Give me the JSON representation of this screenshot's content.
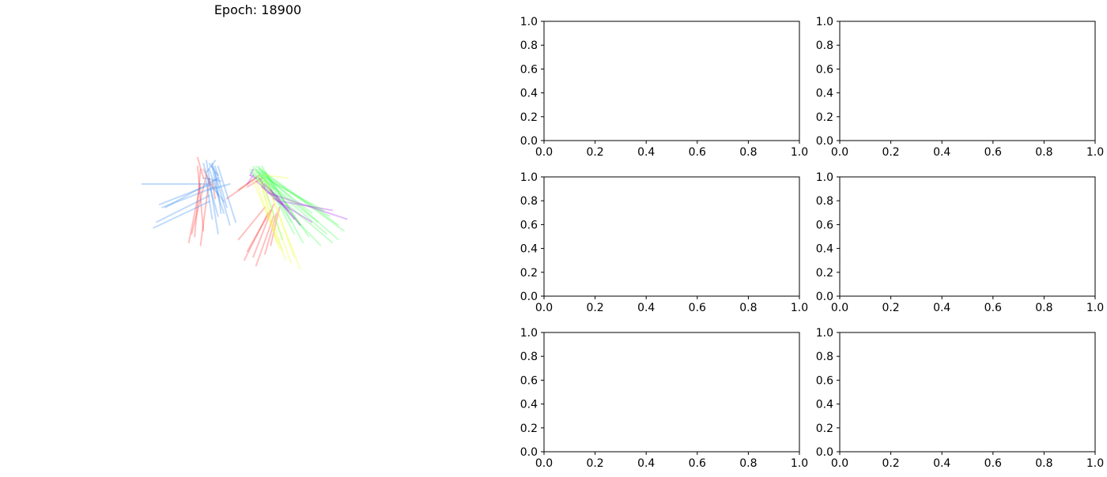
{
  "chart_data": [
    {
      "type": "line",
      "title": "Epoch: 18900",
      "axis_visible": false,
      "grid": false,
      "series": [
        {
          "color": "#ff3333",
          "lines": [
            [
              [
                -2.3,
                1.6
              ],
              [
                -2.1,
                -0.6
              ]
            ],
            [
              [
                -2.2,
                1.5
              ],
              [
                -2.4,
                -0.8
              ]
            ],
            [
              [
                -2.0,
                1.3
              ],
              [
                -2.5,
                -0.7
              ]
            ],
            [
              [
                -1.9,
                1.2
              ],
              [
                -2.2,
                -1.1
              ]
            ],
            [
              [
                -2.3,
                1.9
              ],
              [
                -2.1,
                1.2
              ]
            ],
            [
              [
                -2.1,
                1.5
              ],
              [
                -1.8,
                0.9
              ]
            ],
            [
              [
                -2.2,
                1.0
              ],
              [
                -2.6,
                -1.0
              ]
            ],
            [
              [
                -1.8,
                1.1
              ],
              [
                -1.7,
                0.5
              ]
            ],
            [
              [
                -1.3,
                0.5
              ],
              [
                -0.3,
                1.2
              ]
            ],
            [
              [
                -0.9,
                0.8
              ],
              [
                -0.2,
                1.3
              ]
            ],
            [
              [
                -0.6,
                0.9
              ],
              [
                -0.1,
                1.2
              ]
            ],
            [
              [
                0.0,
                0.2
              ],
              [
                -0.9,
                -0.9
              ]
            ],
            [
              [
                0.1,
                0.0
              ],
              [
                -0.7,
                -1.6
              ]
            ],
            [
              [
                0.3,
                -0.1
              ],
              [
                -0.3,
                -1.8
              ]
            ],
            [
              [
                0.2,
                0.1
              ],
              [
                -0.6,
                -1.3
              ]
            ],
            [
              [
                0.4,
                0.0
              ],
              [
                0.0,
                -1.4
              ]
            ],
            [
              [
                0.3,
                0.3
              ],
              [
                -0.4,
                -1.5
              ]
            ],
            [
              [
                0.5,
                0.2
              ],
              [
                0.2,
                -1.1
              ]
            ]
          ]
        },
        {
          "color": "#3388ee",
          "lines": [
            [
              [
                -4.2,
                1.0
              ],
              [
                -2.0,
                1.0
              ]
            ],
            [
              [
                -3.6,
                0.3
              ],
              [
                -1.8,
                1.0
              ]
            ],
            [
              [
                -3.5,
                0.2
              ],
              [
                -1.7,
                0.9
              ]
            ],
            [
              [
                -3.7,
                -0.3
              ],
              [
                -1.9,
                0.6
              ]
            ],
            [
              [
                -3.8,
                -0.5
              ],
              [
                -1.9,
                0.4
              ]
            ],
            [
              [
                -3.4,
                0.2
              ],
              [
                -1.6,
                1.2
              ]
            ],
            [
              [
                -2.0,
                1.8
              ],
              [
                -1.6,
                -0.7
              ]
            ],
            [
              [
                -1.8,
                1.7
              ],
              [
                -1.2,
                -0.4
              ]
            ],
            [
              [
                -1.7,
                1.6
              ],
              [
                -1.3,
                0.2
              ]
            ],
            [
              [
                -1.9,
                1.5
              ],
              [
                -1.4,
                0.0
              ]
            ],
            [
              [
                -1.6,
                1.6
              ],
              [
                -1.0,
                -0.3
              ]
            ],
            [
              [
                -2.1,
                1.7
              ],
              [
                -1.6,
                -0.1
              ]
            ],
            [
              [
                -1.7,
                1.4
              ],
              [
                -1.5,
                0.0
              ]
            ],
            [
              [
                -2.0,
                1.1
              ],
              [
                -1.8,
                -0.2
              ]
            ],
            [
              [
                -1.8,
                1.6
              ],
              [
                -1.6,
                0.6
              ]
            ],
            [
              [
                -1.9,
                0.8
              ],
              [
                -1.2,
                1.0
              ]
            ],
            [
              [
                -2.1,
                1.2
              ],
              [
                -1.5,
                1.1
              ]
            ],
            [
              [
                -1.6,
                1.3
              ],
              [
                -1.9,
                1.7
              ]
            ],
            [
              [
                -2.0,
                1.4
              ],
              [
                -1.7,
                1.8
              ]
            ],
            [
              [
                -1.8,
                0.9
              ],
              [
                -1.4,
                0.4
              ]
            ]
          ]
        },
        {
          "color": "#44ff55",
          "lines": [
            [
              [
                -0.4,
                1.5
              ],
              [
                2.2,
                -0.1
              ]
            ],
            [
              [
                -0.3,
                1.6
              ],
              [
                2.5,
                -0.4
              ]
            ],
            [
              [
                -0.2,
                1.5
              ],
              [
                2.7,
                -0.6
              ]
            ],
            [
              [
                -0.1,
                1.4
              ],
              [
                2.5,
                -0.9
              ]
            ],
            [
              [
                -0.2,
                1.3
              ],
              [
                2.1,
                -0.7
              ]
            ],
            [
              [
                -0.3,
                1.4
              ],
              [
                1.8,
                -0.3
              ]
            ],
            [
              [
                -0.1,
                1.5
              ],
              [
                1.5,
                -0.8
              ]
            ],
            [
              [
                0.0,
                1.4
              ],
              [
                1.3,
                -1.0
              ]
            ],
            [
              [
                -0.2,
                1.6
              ],
              [
                1.0,
                -0.7
              ]
            ],
            [
              [
                -0.4,
                1.3
              ],
              [
                1.9,
                -1.1
              ]
            ],
            [
              [
                -0.3,
                1.2
              ],
              [
                2.3,
                -1.0
              ]
            ],
            [
              [
                -0.1,
                1.3
              ],
              [
                0.9,
                -0.3
              ]
            ],
            [
              [
                0.0,
                1.2
              ],
              [
                2.0,
                0.1
              ]
            ],
            [
              [
                -0.3,
                1.5
              ],
              [
                1.6,
                0.0
              ]
            ],
            [
              [
                -0.2,
                1.4
              ],
              [
                0.6,
                -0.9
              ]
            ],
            [
              [
                -0.5,
                1.5
              ],
              [
                0.4,
                0.6
              ]
            ],
            [
              [
                -0.4,
                1.6
              ],
              [
                0.3,
                0.8
              ]
            ],
            [
              [
                -0.5,
                1.4
              ],
              [
                0.1,
                1.0
              ]
            ],
            [
              [
                0.1,
                1.3
              ],
              [
                1.2,
                -0.4
              ]
            ],
            [
              [
                -0.1,
                1.6
              ],
              [
                0.8,
                0.2
              ]
            ]
          ]
        },
        {
          "color": "#eeff33",
          "lines": [
            [
              [
                -0.2,
                1.2
              ],
              [
                0.7,
                -1.6
              ]
            ],
            [
              [
                -0.1,
                1.1
              ],
              [
                0.9,
                -1.7
              ]
            ],
            [
              [
                0.0,
                1.2
              ],
              [
                1.2,
                -1.9
              ]
            ],
            [
              [
                -0.3,
                1.1
              ],
              [
                0.5,
                -1.2
              ]
            ],
            [
              [
                0.1,
                1.0
              ],
              [
                1.0,
                -1.5
              ]
            ],
            [
              [
                -0.2,
                1.3
              ],
              [
                0.4,
                -1.0
              ]
            ],
            [
              [
                -0.4,
                1.1
              ],
              [
                0.6,
                -1.3
              ]
            ],
            [
              [
                0.0,
                1.3
              ],
              [
                0.8,
                1.2
              ]
            ]
          ]
        },
        {
          "color": "#aa22ee",
          "lines": [
            [
              [
                -0.4,
                1.3
              ],
              [
                -0.6,
                1.0
              ]
            ],
            [
              [
                -0.3,
                1.2
              ],
              [
                -0.5,
                1.3
              ]
            ],
            [
              [
                -0.5,
                1.3
              ],
              [
                -0.4,
                1.5
              ]
            ],
            [
              [
                -0.2,
                1.2
              ],
              [
                0.0,
                0.9
              ]
            ],
            [
              [
                -0.3,
                1.1
              ],
              [
                0.3,
                0.6
              ]
            ],
            [
              [
                0.0,
                1.0
              ],
              [
                0.6,
                0.3
              ]
            ],
            [
              [
                -0.1,
                0.9
              ],
              [
                0.8,
                0.1
              ]
            ],
            [
              [
                0.2,
                0.8
              ],
              [
                1.0,
                -0.2
              ]
            ],
            [
              [
                0.4,
                0.6
              ],
              [
                1.2,
                -0.4
              ]
            ],
            [
              [
                0.1,
                0.7
              ],
              [
                2.8,
                -0.2
              ]
            ],
            [
              [
                0.6,
                0.4
              ],
              [
                2.3,
                0.1
              ]
            ],
            [
              [
                0.3,
                0.5
              ],
              [
                1.6,
                -0.3
              ]
            ]
          ]
        }
      ]
    },
    {
      "type": "line",
      "series": [],
      "xlim": [
        0.0,
        1.0
      ],
      "ylim": [
        0.0,
        1.0
      ],
      "xticks": [
        "0.0",
        "0.2",
        "0.4",
        "0.6",
        "0.8",
        "1.0"
      ],
      "yticks": [
        "0.0",
        "0.2",
        "0.4",
        "0.6",
        "0.8",
        "1.0"
      ]
    },
    {
      "type": "line",
      "series": [],
      "xlim": [
        0.0,
        1.0
      ],
      "ylim": [
        0.0,
        1.0
      ],
      "xticks": [
        "0.0",
        "0.2",
        "0.4",
        "0.6",
        "0.8",
        "1.0"
      ],
      "yticks": [
        "0.0",
        "0.2",
        "0.4",
        "0.6",
        "0.8",
        "1.0"
      ]
    },
    {
      "type": "line",
      "series": [],
      "xlim": [
        0.0,
        1.0
      ],
      "ylim": [
        0.0,
        1.0
      ],
      "xticks": [
        "0.0",
        "0.2",
        "0.4",
        "0.6",
        "0.8",
        "1.0"
      ],
      "yticks": [
        "0.0",
        "0.2",
        "0.4",
        "0.6",
        "0.8",
        "1.0"
      ]
    },
    {
      "type": "line",
      "series": [],
      "xlim": [
        0.0,
        1.0
      ],
      "ylim": [
        0.0,
        1.0
      ],
      "xticks": [
        "0.0",
        "0.2",
        "0.4",
        "0.6",
        "0.8",
        "1.0"
      ],
      "yticks": [
        "0.0",
        "0.2",
        "0.4",
        "0.6",
        "0.8",
        "1.0"
      ]
    },
    {
      "type": "line",
      "series": [],
      "xlim": [
        0.0,
        1.0
      ],
      "ylim": [
        0.0,
        1.0
      ],
      "xticks": [
        "0.0",
        "0.2",
        "0.4",
        "0.6",
        "0.8",
        "1.0"
      ],
      "yticks": [
        "0.0",
        "0.2",
        "0.4",
        "0.6",
        "0.8",
        "1.0"
      ]
    },
    {
      "type": "line",
      "series": [],
      "xlim": [
        0.0,
        1.0
      ],
      "ylim": [
        0.0,
        1.0
      ],
      "xticks": [
        "0.0",
        "0.2",
        "0.4",
        "0.6",
        "0.8",
        "1.0"
      ],
      "yticks": [
        "0.0",
        "0.2",
        "0.4",
        "0.6",
        "0.8",
        "1.0"
      ]
    }
  ]
}
